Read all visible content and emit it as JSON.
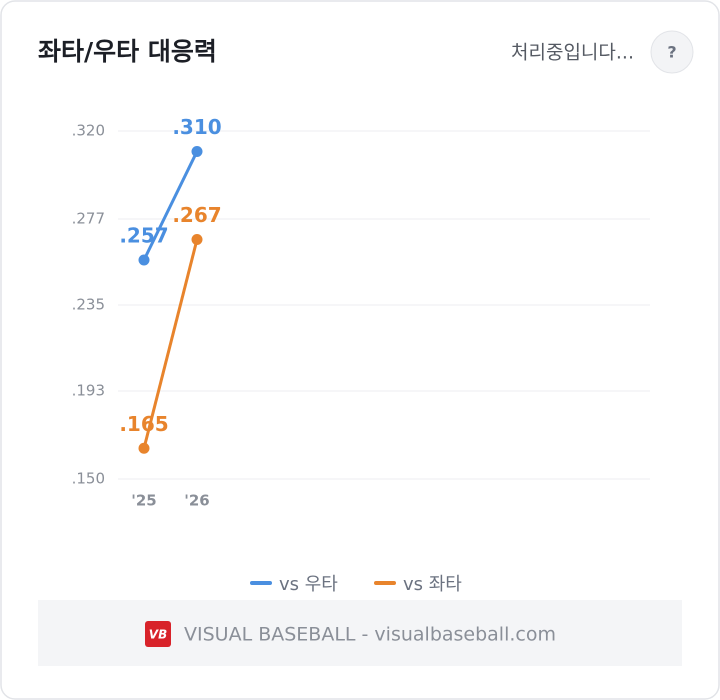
{
  "header": {
    "status": "처리중입니다...",
    "help": "?"
  },
  "chart_data": {
    "type": "line",
    "title": "좌타/우타 대응력",
    "categories": [
      "'25",
      "'26"
    ],
    "series": [
      {
        "name": "vs 우타",
        "color": "#4a8fe0",
        "values": [
          0.257,
          0.31
        ],
        "value_labels": [
          ".257",
          ".310"
        ]
      },
      {
        "name": "vs 좌타",
        "color": "#e8842c",
        "values": [
          0.165,
          0.267
        ],
        "value_labels": [
          ".165",
          ".267"
        ]
      }
    ],
    "ylim": [
      0.15,
      0.32
    ],
    "yticks": [
      {
        "value": 0.15,
        "label": ".150"
      },
      {
        "value": 0.193,
        "label": ".193"
      },
      {
        "value": 0.235,
        "label": ".235"
      },
      {
        "value": 0.277,
        "label": ".277"
      },
      {
        "value": 0.32,
        "label": ".320"
      }
    ],
    "grid": true,
    "legend": "bottom"
  },
  "footer": {
    "logo": "VB",
    "text": "VISUAL BASEBALL - visualbaseball.com"
  }
}
